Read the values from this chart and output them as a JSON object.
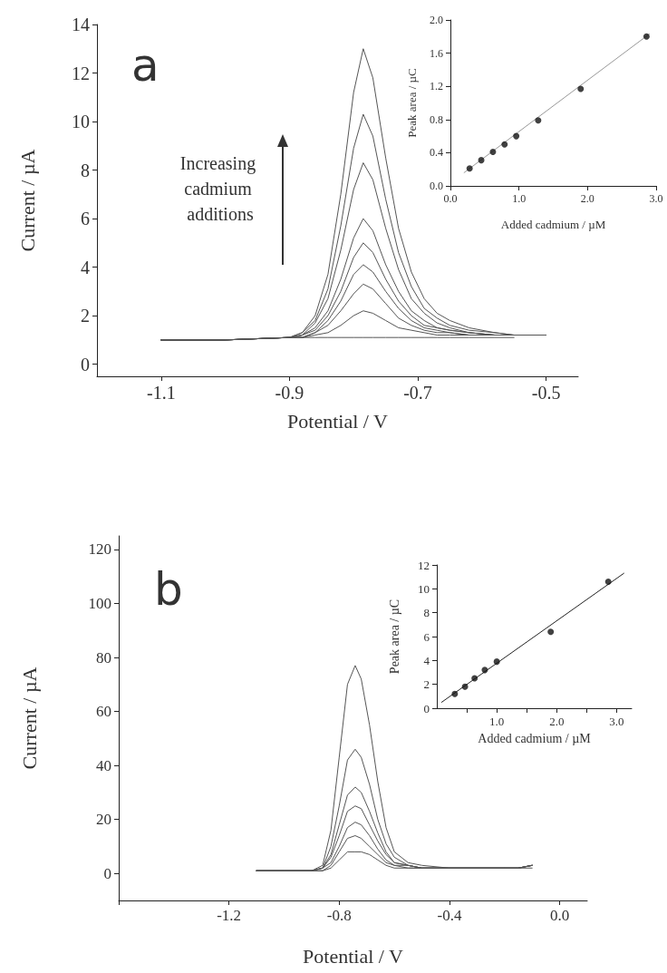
{
  "chart_data": [
    {
      "type": "line",
      "title": "a",
      "xlabel": "Potential / V",
      "ylabel": "Current / µA",
      "annotations": [
        "Increasing cadmium additions"
      ],
      "marker": "none",
      "line_style": "solid",
      "xlim": [
        -1.2,
        -0.45
      ],
      "xticks": [
        -1.1,
        -0.9,
        -0.7,
        -0.5
      ],
      "ylim": [
        -0.5,
        14
      ],
      "yticks": [
        0,
        2,
        4,
        6,
        8,
        10,
        12,
        14
      ],
      "x": [
        -1.1,
        -1.0,
        -0.9,
        -0.88,
        -0.86,
        -0.84,
        -0.82,
        -0.8,
        -0.785,
        -0.77,
        -0.75,
        -0.73,
        -0.71,
        -0.69,
        -0.67,
        -0.65,
        -0.62,
        -0.58,
        -0.55,
        -0.5
      ],
      "series": [
        {
          "color": "#555555",
          "x": [
            -1.1,
            -1.0,
            -0.9,
            -0.88,
            -0.86,
            -0.84,
            -0.82,
            -0.8,
            -0.785,
            -0.77,
            -0.75,
            -0.73,
            -0.71,
            -0.69,
            -0.67,
            -0.65,
            -0.62,
            -0.58,
            -0.55
          ],
          "values": [
            1.0,
            1.0,
            1.1,
            1.1,
            1.1,
            1.1,
            1.1,
            1.1,
            1.1,
            1.1,
            1.1,
            1.1,
            1.1,
            1.1,
            1.1,
            1.1,
            1.1,
            1.1,
            1.1
          ]
        },
        {
          "color": "#555555",
          "values": [
            1.0,
            1.0,
            1.1,
            1.1,
            1.2,
            1.3,
            1.6,
            2.0,
            2.2,
            2.1,
            1.8,
            1.5,
            1.4,
            1.3,
            1.2,
            1.2,
            1.2,
            1.2,
            1.2,
            1.2
          ]
        },
        {
          "color": "#555555",
          "values": [
            1.0,
            1.0,
            1.1,
            1.1,
            1.3,
            1.6,
            2.2,
            2.9,
            3.3,
            3.1,
            2.5,
            1.9,
            1.6,
            1.4,
            1.3,
            1.3,
            1.2,
            1.2,
            1.2,
            1.2
          ]
        },
        {
          "color": "#555555",
          "values": [
            1.0,
            1.0,
            1.1,
            1.1,
            1.3,
            1.8,
            2.6,
            3.7,
            4.1,
            3.8,
            3.0,
            2.3,
            1.8,
            1.5,
            1.4,
            1.3,
            1.2,
            1.2,
            1.2,
            1.2
          ]
        },
        {
          "color": "#555555",
          "values": [
            1.0,
            1.0,
            1.1,
            1.2,
            1.4,
            2.0,
            3.0,
            4.4,
            5.0,
            4.6,
            3.5,
            2.6,
            2.0,
            1.6,
            1.5,
            1.4,
            1.3,
            1.2,
            1.2,
            1.2
          ]
        },
        {
          "color": "#555555",
          "values": [
            1.0,
            1.0,
            1.1,
            1.2,
            1.5,
            2.2,
            3.5,
            5.2,
            6.0,
            5.5,
            4.1,
            3.0,
            2.2,
            1.8,
            1.5,
            1.4,
            1.3,
            1.2,
            1.2,
            1.2
          ]
        },
        {
          "color": "#555555",
          "values": [
            1.0,
            1.0,
            1.1,
            1.2,
            1.7,
            2.7,
            4.7,
            7.2,
            8.3,
            7.6,
            5.6,
            3.9,
            2.7,
            2.1,
            1.7,
            1.5,
            1.3,
            1.2,
            1.2,
            1.2
          ]
        },
        {
          "color": "#555555",
          "values": [
            1.0,
            1.0,
            1.1,
            1.3,
            1.8,
            3.1,
            5.7,
            8.9,
            10.3,
            9.4,
            6.8,
            4.6,
            3.2,
            2.3,
            1.9,
            1.6,
            1.4,
            1.3,
            1.2,
            1.2
          ]
        },
        {
          "color": "#555555",
          "values": [
            1.0,
            1.0,
            1.1,
            1.3,
            2.0,
            3.7,
            7.0,
            11.2,
            13.0,
            11.8,
            8.5,
            5.6,
            3.8,
            2.7,
            2.1,
            1.8,
            1.5,
            1.3,
            1.2,
            1.2
          ]
        }
      ]
    },
    {
      "type": "scatter",
      "xlabel": "Added cadmium / µM",
      "ylabel": "Peak area / µC",
      "marker": "circle",
      "xlim": [
        0,
        3
      ],
      "xticks": [
        {
          "value": 0,
          "label": "0.0"
        },
        {
          "value": 1,
          "label": "1.0"
        },
        {
          "value": 2,
          "label": "2.0"
        },
        {
          "value": 3,
          "label": "3.0"
        }
      ],
      "ylim": [
        0,
        2
      ],
      "yticks": [
        {
          "value": 0,
          "label": "0.0"
        },
        0.4,
        0.8,
        1.2,
        1.6,
        {
          "value": 2,
          "label": "2.0"
        }
      ],
      "x": [
        0.28,
        0.45,
        0.62,
        0.79,
        0.96,
        1.28,
        1.9,
        2.86
      ],
      "series": [
        {
          "color": "#111111",
          "values": [
            0.21,
            0.31,
            0.41,
            0.5,
            0.6,
            0.79,
            1.17,
            1.8
          ]
        },
        {
          "type": "line",
          "marker": "none",
          "color": "#999999",
          "x": [
            0.2,
            2.9
          ],
          "values": [
            0.16,
            1.83
          ]
        }
      ]
    },
    {
      "type": "line",
      "title": "b",
      "xlabel": "Potential / V",
      "ylabel": "Current / µA",
      "marker": "none",
      "line_style": "solid",
      "xlim": [
        -1.6,
        0.1
      ],
      "xticks": [
        {
          "value": -1.6,
          "label": null
        },
        -1.2,
        -0.8,
        -0.4,
        {
          "value": 0,
          "label": "0.0"
        }
      ],
      "ylim": [
        -10,
        125
      ],
      "yticks": [
        0,
        20,
        40,
        60,
        80,
        100,
        120
      ],
      "x": [
        -1.1,
        -1.0,
        -0.9,
        -0.86,
        -0.83,
        -0.8,
        -0.77,
        -0.742,
        -0.72,
        -0.69,
        -0.66,
        -0.63,
        -0.6,
        -0.55,
        -0.5,
        -0.4,
        -0.3,
        -0.2,
        -0.15,
        -0.1
      ],
      "series": [
        {
          "color": "#555555",
          "values": [
            1,
            1,
            1,
            1,
            2,
            5,
            8,
            8,
            8,
            7,
            5,
            3,
            2,
            2,
            2,
            2,
            2,
            2,
            2,
            2
          ]
        },
        {
          "color": "#555555",
          "values": [
            1,
            1,
            1,
            1,
            3,
            8,
            13,
            14,
            13,
            10,
            7,
            4,
            3,
            2,
            2,
            2,
            2,
            2,
            2,
            3
          ]
        },
        {
          "color": "#555555",
          "values": [
            1,
            1,
            1,
            2,
            4,
            10,
            17,
            19,
            18,
            14,
            9,
            5,
            3,
            3,
            2,
            2,
            2,
            2,
            2,
            3
          ]
        },
        {
          "color": "#555555",
          "values": [
            1,
            1,
            1,
            2,
            6,
            14,
            23,
            25,
            24,
            18,
            12,
            7,
            4,
            3,
            2,
            2,
            2,
            2,
            2,
            3
          ]
        },
        {
          "color": "#555555",
          "values": [
            1,
            1,
            1,
            2,
            7,
            18,
            29,
            32,
            30,
            23,
            15,
            8,
            4,
            3,
            2,
            2,
            2,
            2,
            2,
            3
          ]
        },
        {
          "color": "#555555",
          "values": [
            1,
            1,
            1,
            2,
            10,
            25,
            42,
            46,
            43,
            33,
            20,
            11,
            6,
            3,
            2,
            2,
            2,
            2,
            2,
            3
          ]
        },
        {
          "color": "#555555",
          "values": [
            1,
            1,
            1,
            3,
            16,
            43,
            70,
            77,
            72,
            55,
            34,
            17,
            8,
            4,
            3,
            2,
            2,
            2,
            2,
            3
          ]
        }
      ]
    },
    {
      "type": "scatter",
      "xlabel": "Added cadmium / µM",
      "ylabel": "Peak area / µC",
      "marker": "circle",
      "xlim": [
        0,
        3.25
      ],
      "xticks": [
        {
          "value": 0.5,
          "label": null
        },
        {
          "value": 1,
          "label": "1.0"
        },
        {
          "value": 1.5,
          "label": null
        },
        {
          "value": 2,
          "label": "2.0"
        },
        {
          "value": 2.5,
          "label": null
        },
        {
          "value": 3,
          "label": "3.0"
        }
      ],
      "ylim": [
        0,
        12
      ],
      "yticks": [
        0,
        2,
        4,
        6,
        8,
        10,
        12
      ],
      "x": [
        0.3,
        0.47,
        0.63,
        0.8,
        1.0,
        1.9,
        2.86
      ],
      "series": [
        {
          "color": "#111111",
          "values": [
            1.2,
            1.8,
            2.5,
            3.2,
            3.9,
            6.4,
            10.6
          ]
        },
        {
          "type": "line",
          "marker": "none",
          "color": "#222222",
          "x": [
            0.08,
            3.12
          ],
          "values": [
            0.5,
            11.3
          ]
        }
      ]
    }
  ]
}
